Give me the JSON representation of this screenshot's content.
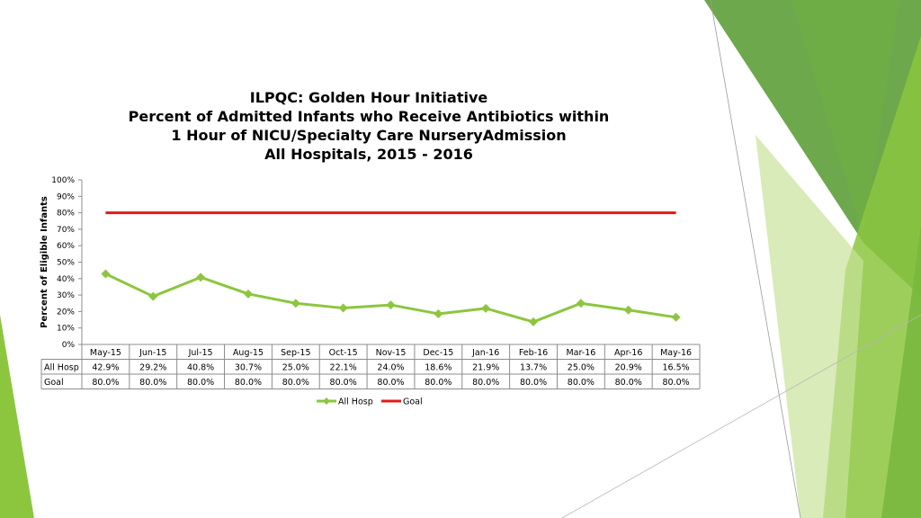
{
  "chart_data": {
    "type": "line",
    "title": [
      "ILPQC: Golden Hour Initiative",
      "Percent of Admitted Infants who Receive Antibiotics within",
      "1 Hour of NICU/Specialty Care NurseryAdmission",
      "All Hospitals, 2015 - 2016"
    ],
    "ylabel": "Percent of Eligible Infants",
    "xlabel": "",
    "ylim": [
      0,
      100
    ],
    "yticks": [
      "0%",
      "10%",
      "20%",
      "30%",
      "40%",
      "50%",
      "60%",
      "70%",
      "80%",
      "90%",
      "100%"
    ],
    "categories": [
      "May-15",
      "Jun-15",
      "Jul-15",
      "Aug-15",
      "Sep-15",
      "Oct-15",
      "Nov-15",
      "Dec-15",
      "Jan-16",
      "Feb-16",
      "Mar-16",
      "Apr-16",
      "May-16"
    ],
    "series": [
      {
        "name": "All Hosp",
        "color": "#8cc63f",
        "marker": "diamond",
        "values": [
          42.9,
          29.2,
          40.8,
          30.7,
          25.0,
          22.1,
          24.0,
          18.6,
          21.9,
          13.7,
          25.0,
          20.9,
          16.5
        ],
        "labels": [
          "42.9%",
          "29.2%",
          "40.8%",
          "30.7%",
          "25.0%",
          "22.1%",
          "24.0%",
          "18.6%",
          "21.9%",
          "13.7%",
          "25.0%",
          "20.9%",
          "16.5%"
        ]
      },
      {
        "name": "Goal",
        "color": "#e21a1a",
        "marker": "none",
        "values": [
          80,
          80,
          80,
          80,
          80,
          80,
          80,
          80,
          80,
          80,
          80,
          80,
          80
        ],
        "labels": [
          "80.0%",
          "80.0%",
          "80.0%",
          "80.0%",
          "80.0%",
          "80.0%",
          "80.0%",
          "80.0%",
          "80.0%",
          "80.0%",
          "80.0%",
          "80.0%",
          "80.0%"
        ]
      }
    ],
    "grid": false,
    "legend": "bottom",
    "data_table": true
  }
}
